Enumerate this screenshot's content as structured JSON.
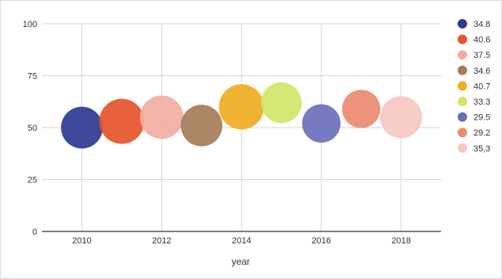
{
  "chart_data": {
    "type": "scatter",
    "xlabel": "year",
    "ylabel": "",
    "xlim": [
      2009,
      2019
    ],
    "ylim": [
      0,
      100
    ],
    "x_ticks": [
      "2010",
      "2012",
      "2014",
      "2016",
      "2018"
    ],
    "y_ticks": [
      "0",
      "25",
      "50",
      "75",
      "100"
    ],
    "grid": true,
    "legend_position": "right",
    "points": [
      {
        "year": 2010,
        "y": 50,
        "size": 34.8,
        "label": "34.8",
        "color": "#2f3a93"
      },
      {
        "year": 2011,
        "y": 53,
        "size": 40.6,
        "label": "40.6",
        "color": "#e5552b"
      },
      {
        "year": 2012,
        "y": 55,
        "size": 37.5,
        "label": "37.5",
        "color": "#f1ada2"
      },
      {
        "year": 2013,
        "y": 51,
        "size": 34.6,
        "label": "34.6",
        "color": "#a67c59"
      },
      {
        "year": 2014,
        "y": 60,
        "size": 40.7,
        "label": "40.7",
        "color": "#f0ad23"
      },
      {
        "year": 2015,
        "y": 62,
        "size": 33.3,
        "label": "33.3",
        "color": "#d4e56a"
      },
      {
        "year": 2016,
        "y": 52,
        "size": 29.5,
        "label": "29.5",
        "color": "#6a6fbc"
      },
      {
        "year": 2017,
        "y": 59,
        "size": 29.2,
        "label": "29.2",
        "color": "#ec8a71"
      },
      {
        "year": 2018,
        "y": 55,
        "size": 35.3,
        "label": "35,3",
        "color": "#f6c8c1"
      }
    ]
  }
}
